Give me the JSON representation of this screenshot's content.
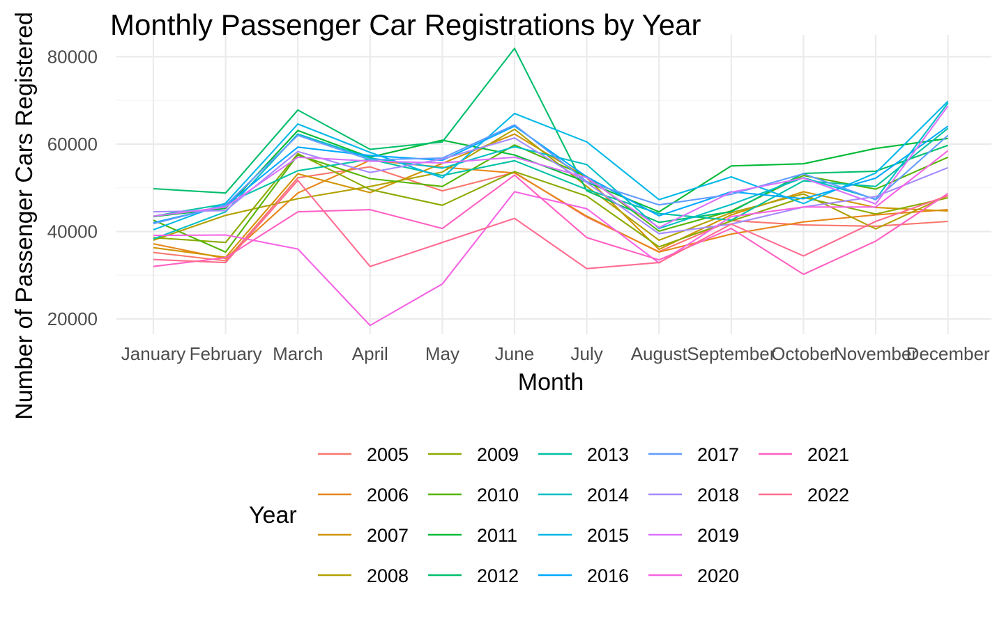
{
  "chart_data": {
    "type": "line",
    "title": "Monthly Passenger Car Registrations by Year",
    "xlabel": "Month",
    "ylabel": "Number of Passenger Cars Registered",
    "categories": [
      "January",
      "February",
      "March",
      "April",
      "May",
      "June",
      "July",
      "August",
      "September",
      "October",
      "November",
      "December"
    ],
    "yticks": [
      20000,
      40000,
      60000,
      80000
    ],
    "ytick_labels": [
      "20000",
      "40000",
      "60000",
      "80000"
    ],
    "ylim": [
      16500,
      85000
    ],
    "grid": true,
    "legend": {
      "title": "Year",
      "placement": "bottom"
    },
    "series": [
      {
        "name": "2005",
        "color": "#F8766D",
        "values": [
          35200,
          33300,
          52300,
          54800,
          49300,
          53500,
          43300,
          35400,
          42500,
          41500,
          41200,
          42300
        ]
      },
      {
        "name": "2006",
        "color": "#E7861B",
        "values": [
          37200,
          33800,
          48800,
          56300,
          54700,
          53400,
          43500,
          35300,
          39400,
          42200,
          43800,
          45000
        ]
      },
      {
        "name": "2007",
        "color": "#D09400",
        "values": [
          36300,
          34100,
          53200,
          48900,
          55600,
          62300,
          52300,
          35900,
          43800,
          49100,
          45500,
          44700
        ]
      },
      {
        "name": "2008",
        "color": "#B2A100",
        "values": [
          38000,
          43700,
          47500,
          50300,
          53600,
          63400,
          50300,
          38000,
          44300,
          48600,
          40600,
          48200
        ]
      },
      {
        "name": "2009",
        "color": "#8BAB00",
        "values": [
          38600,
          37500,
          57800,
          49600,
          46000,
          53700,
          48100,
          36500,
          42400,
          47800,
          44000,
          47700
        ]
      },
      {
        "name": "2010",
        "color": "#55B400",
        "values": [
          42600,
          35300,
          57500,
          52100,
          50300,
          59800,
          52600,
          40100,
          44700,
          52800,
          49700,
          57000
        ]
      },
      {
        "name": "2011",
        "color": "#00BA38",
        "values": [
          43400,
          45300,
          63100,
          57000,
          60900,
          57500,
          51300,
          44500,
          55000,
          55500,
          59000,
          61300
        ]
      },
      {
        "name": "2012",
        "color": "#00BE6C",
        "values": [
          49800,
          48800,
          67800,
          58800,
          60500,
          81900,
          49300,
          42100,
          44500,
          53300,
          53800,
          59700
        ]
      },
      {
        "name": "2013",
        "color": "#00C1A3",
        "values": [
          43500,
          46300,
          53900,
          56500,
          52800,
          56200,
          49600,
          44100,
          42600,
          51600,
          50300,
          63600
        ]
      },
      {
        "name": "2014",
        "color": "#00BFC4",
        "values": [
          38300,
          44500,
          62300,
          56800,
          54500,
          59400,
          55300,
          40700,
          46200,
          52300,
          47400,
          69400
        ]
      },
      {
        "name": "2015",
        "color": "#00B8E7",
        "values": [
          40400,
          46500,
          64600,
          58100,
          52300,
          67000,
          60500,
          47300,
          52500,
          46400,
          53400,
          69800
        ]
      },
      {
        "name": "2016",
        "color": "#00A9FF",
        "values": [
          42000,
          45900,
          59300,
          57400,
          56300,
          64100,
          52500,
          43600,
          49100,
          47500,
          52200,
          64100
        ]
      },
      {
        "name": "2017",
        "color": "#619CFF",
        "values": [
          41800,
          46000,
          62000,
          56400,
          56800,
          64400,
          51400,
          46100,
          48500,
          53200,
          47300,
          62000
        ]
      },
      {
        "name": "2018",
        "color": "#A58AFF",
        "values": [
          44500,
          44800,
          58300,
          53500,
          56600,
          61400,
          51200,
          39500,
          41700,
          45600,
          48000,
          54600
        ]
      },
      {
        "name": "2019",
        "color": "#DB72FB",
        "values": [
          43500,
          45600,
          57000,
          56100,
          55700,
          57000,
          52300,
          40900,
          49000,
          52200,
          46300,
          68700
        ]
      },
      {
        "name": "2020",
        "color": "#F564E3",
        "values": [
          39100,
          39200,
          36000,
          18500,
          28000,
          49100,
          45200,
          32800,
          43400,
          45600,
          45600,
          58500
        ]
      },
      {
        "name": "2021",
        "color": "#FF61C3",
        "values": [
          32000,
          34000,
          44500,
          45000,
          40700,
          52900,
          38600,
          33500,
          40700,
          30200,
          37800,
          48700
        ]
      },
      {
        "name": "2022",
        "color": "#FF6C91",
        "values": [
          33600,
          32900,
          51700,
          32000,
          37500,
          43000,
          31500,
          32900,
          41700,
          34400,
          42300,
          48200
        ]
      }
    ]
  }
}
